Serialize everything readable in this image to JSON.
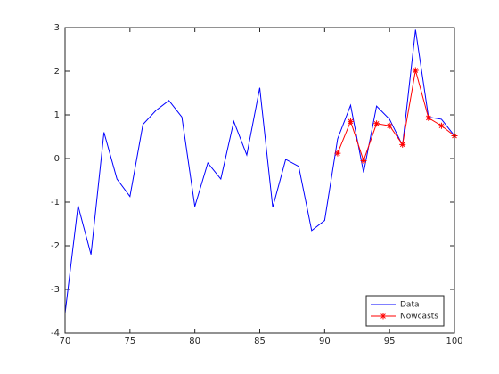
{
  "chart_data": {
    "type": "line",
    "x": [
      70,
      71,
      72,
      73,
      74,
      75,
      76,
      77,
      78,
      79,
      80,
      81,
      82,
      83,
      84,
      85,
      86,
      87,
      88,
      89,
      90,
      91,
      92,
      93,
      94,
      95,
      96,
      97,
      98,
      99,
      100
    ],
    "series": [
      {
        "name": "Data",
        "color": "#0000ff",
        "marker": "none",
        "values": [
          -3.55,
          -1.08,
          -2.2,
          0.6,
          -0.47,
          -0.87,
          0.78,
          1.1,
          1.33,
          0.95,
          -1.1,
          -0.1,
          -0.47,
          0.85,
          0.08,
          1.62,
          -1.12,
          -0.02,
          -0.18,
          -1.65,
          -1.42,
          0.45,
          1.22,
          -0.32,
          1.2,
          0.9,
          0.3,
          2.95,
          0.95,
          0.9,
          0.52
        ]
      },
      {
        "name": "Nowcasts",
        "color": "#ff0000",
        "marker": "star",
        "values": [
          null,
          null,
          null,
          null,
          null,
          null,
          null,
          null,
          null,
          null,
          null,
          null,
          null,
          null,
          null,
          null,
          null,
          null,
          null,
          null,
          null,
          0.12,
          0.85,
          -0.05,
          0.8,
          0.75,
          0.32,
          2.02,
          0.93,
          0.75,
          0.52
        ]
      }
    ],
    "xlim": [
      70,
      100
    ],
    "xticks": [
      70,
      75,
      80,
      85,
      90,
      95,
      100
    ],
    "ylim": [
      -4,
      3
    ],
    "yticks": [
      -4,
      -3,
      -2,
      -1,
      0,
      1,
      2,
      3
    ],
    "grid": false,
    "legend": "southeast"
  }
}
